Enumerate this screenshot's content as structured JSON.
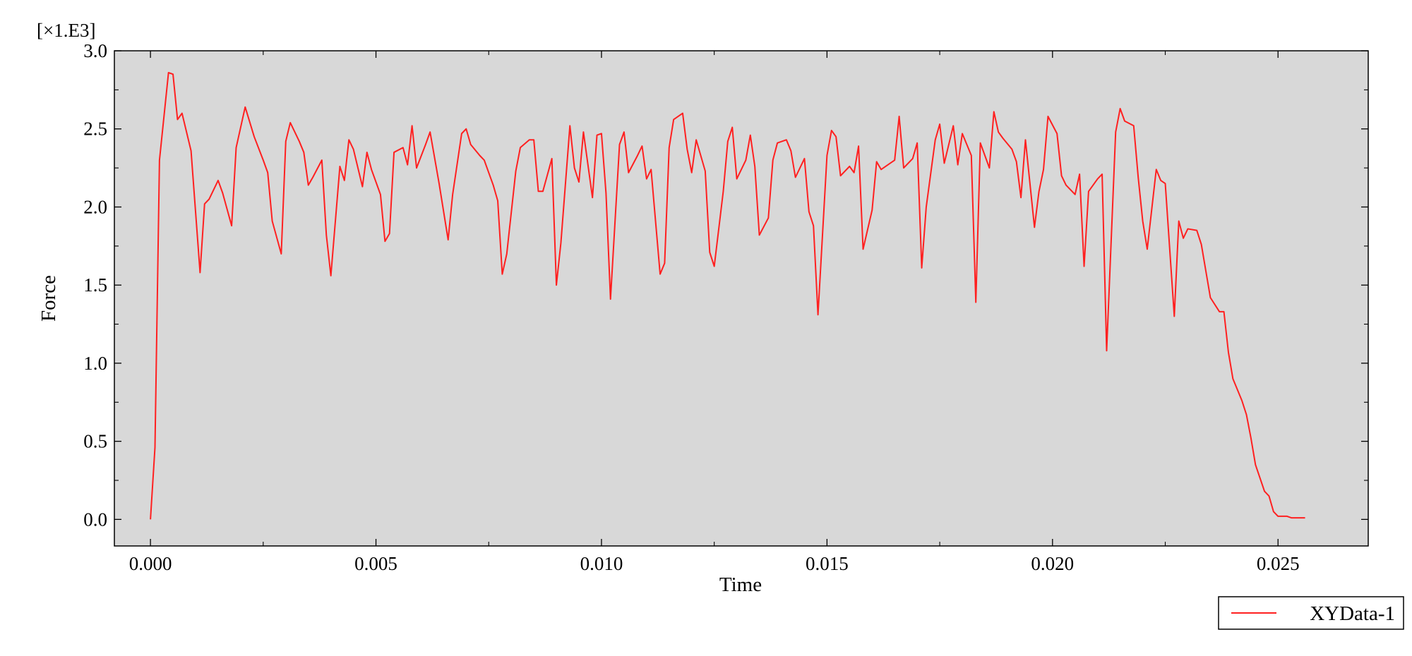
{
  "chart_data": {
    "type": "line",
    "xlabel": "Time",
    "ylabel": "Force",
    "y_scale_label": "[×1.E3]",
    "xlim": [
      -0.0008,
      0.027
    ],
    "ylim": [
      -0.17,
      3.0
    ],
    "x_ticks": [
      0.0,
      0.005,
      0.01,
      0.015,
      0.02,
      0.025
    ],
    "x_tick_labels": [
      "0.000",
      "0.005",
      "0.010",
      "0.015",
      "0.020",
      "0.025"
    ],
    "y_ticks": [
      0.0,
      0.5,
      1.0,
      1.5,
      2.0,
      2.5,
      3.0
    ],
    "y_tick_labels": [
      "0.0",
      "0.5",
      "1.0",
      "1.5",
      "2.0",
      "2.5",
      "3.0"
    ],
    "grid": false,
    "legend_position": "bottom-right",
    "background_color": "#d8d8d8",
    "series": [
      {
        "name": "XYData-1",
        "color": "#ff2020",
        "points": [
          [
            0.0,
            0.0
          ],
          [
            0.0001,
            0.46
          ],
          [
            0.0002,
            2.3
          ],
          [
            0.0004,
            2.86
          ],
          [
            0.0005,
            2.85
          ],
          [
            0.0006,
            2.56
          ],
          [
            0.0007,
            2.6
          ],
          [
            0.0009,
            2.36
          ],
          [
            0.0011,
            1.58
          ],
          [
            0.0012,
            2.02
          ],
          [
            0.0013,
            2.05
          ],
          [
            0.0015,
            2.17
          ],
          [
            0.0016,
            2.09
          ],
          [
            0.0018,
            1.88
          ],
          [
            0.0019,
            2.38
          ],
          [
            0.0021,
            2.64
          ],
          [
            0.0023,
            2.45
          ],
          [
            0.0025,
            2.3
          ],
          [
            0.0026,
            2.22
          ],
          [
            0.0027,
            1.91
          ],
          [
            0.0029,
            1.7
          ],
          [
            0.003,
            2.42
          ],
          [
            0.0031,
            2.54
          ],
          [
            0.0033,
            2.42
          ],
          [
            0.0034,
            2.35
          ],
          [
            0.0035,
            2.14
          ],
          [
            0.0036,
            2.19
          ],
          [
            0.0038,
            2.3
          ],
          [
            0.0039,
            1.82
          ],
          [
            0.004,
            1.56
          ],
          [
            0.0042,
            2.26
          ],
          [
            0.0043,
            2.17
          ],
          [
            0.0044,
            2.43
          ],
          [
            0.0045,
            2.37
          ],
          [
            0.0047,
            2.13
          ],
          [
            0.0048,
            2.35
          ],
          [
            0.0049,
            2.24
          ],
          [
            0.0051,
            2.08
          ],
          [
            0.0052,
            1.78
          ],
          [
            0.0053,
            1.83
          ],
          [
            0.0054,
            2.35
          ],
          [
            0.0056,
            2.38
          ],
          [
            0.0057,
            2.27
          ],
          [
            0.0058,
            2.52
          ],
          [
            0.0059,
            2.25
          ],
          [
            0.0061,
            2.4
          ],
          [
            0.0062,
            2.48
          ],
          [
            0.0064,
            2.15
          ],
          [
            0.0066,
            1.79
          ],
          [
            0.0067,
            2.08
          ],
          [
            0.0069,
            2.47
          ],
          [
            0.007,
            2.5
          ],
          [
            0.0071,
            2.4
          ],
          [
            0.0073,
            2.33
          ],
          [
            0.0074,
            2.3
          ],
          [
            0.0076,
            2.14
          ],
          [
            0.0077,
            2.04
          ],
          [
            0.0078,
            1.57
          ],
          [
            0.0079,
            1.7
          ],
          [
            0.0081,
            2.23
          ],
          [
            0.0082,
            2.38
          ],
          [
            0.0084,
            2.43
          ],
          [
            0.0085,
            2.43
          ],
          [
            0.0086,
            2.1
          ],
          [
            0.0087,
            2.1
          ],
          [
            0.0089,
            2.31
          ],
          [
            0.009,
            1.5
          ],
          [
            0.0091,
            1.77
          ],
          [
            0.0093,
            2.52
          ],
          [
            0.0094,
            2.25
          ],
          [
            0.0095,
            2.16
          ],
          [
            0.0096,
            2.48
          ],
          [
            0.0098,
            2.06
          ],
          [
            0.0099,
            2.46
          ],
          [
            0.01,
            2.47
          ],
          [
            0.0101,
            2.09
          ],
          [
            0.0102,
            1.41
          ],
          [
            0.0104,
            2.4
          ],
          [
            0.0105,
            2.48
          ],
          [
            0.0106,
            2.22
          ],
          [
            0.0108,
            2.33
          ],
          [
            0.0109,
            2.39
          ],
          [
            0.011,
            2.18
          ],
          [
            0.0111,
            2.24
          ],
          [
            0.0113,
            1.57
          ],
          [
            0.0114,
            1.64
          ],
          [
            0.0115,
            2.38
          ],
          [
            0.0116,
            2.56
          ],
          [
            0.0118,
            2.6
          ],
          [
            0.0119,
            2.37
          ],
          [
            0.012,
            2.22
          ],
          [
            0.0121,
            2.43
          ],
          [
            0.0123,
            2.23
          ],
          [
            0.0124,
            1.71
          ],
          [
            0.0125,
            1.62
          ],
          [
            0.0127,
            2.1
          ],
          [
            0.0128,
            2.42
          ],
          [
            0.0129,
            2.51
          ],
          [
            0.013,
            2.18
          ],
          [
            0.0132,
            2.3
          ],
          [
            0.0133,
            2.46
          ],
          [
            0.0134,
            2.26
          ],
          [
            0.0135,
            1.82
          ],
          [
            0.0137,
            1.93
          ],
          [
            0.0138,
            2.3
          ],
          [
            0.0139,
            2.41
          ],
          [
            0.0141,
            2.43
          ],
          [
            0.0142,
            2.36
          ],
          [
            0.0143,
            2.19
          ],
          [
            0.0145,
            2.31
          ],
          [
            0.0146,
            1.97
          ],
          [
            0.0147,
            1.88
          ],
          [
            0.0148,
            1.31
          ],
          [
            0.015,
            2.33
          ],
          [
            0.0151,
            2.49
          ],
          [
            0.0152,
            2.45
          ],
          [
            0.0153,
            2.2
          ],
          [
            0.0155,
            2.26
          ],
          [
            0.0156,
            2.22
          ],
          [
            0.0157,
            2.39
          ],
          [
            0.0158,
            1.73
          ],
          [
            0.016,
            1.98
          ],
          [
            0.0161,
            2.29
          ],
          [
            0.0162,
            2.24
          ],
          [
            0.0164,
            2.28
          ],
          [
            0.0165,
            2.3
          ],
          [
            0.0166,
            2.58
          ],
          [
            0.0167,
            2.25
          ],
          [
            0.0169,
            2.31
          ],
          [
            0.017,
            2.41
          ],
          [
            0.0171,
            1.61
          ],
          [
            0.0172,
            2.0
          ],
          [
            0.0174,
            2.43
          ],
          [
            0.0175,
            2.53
          ],
          [
            0.0176,
            2.28
          ],
          [
            0.0178,
            2.52
          ],
          [
            0.0179,
            2.27
          ],
          [
            0.018,
            2.47
          ],
          [
            0.0182,
            2.33
          ],
          [
            0.0183,
            1.39
          ],
          [
            0.0184,
            2.41
          ],
          [
            0.0186,
            2.25
          ],
          [
            0.0187,
            2.61
          ],
          [
            0.0188,
            2.48
          ],
          [
            0.0189,
            2.44
          ],
          [
            0.0191,
            2.37
          ],
          [
            0.0192,
            2.29
          ],
          [
            0.0193,
            2.06
          ],
          [
            0.0194,
            2.43
          ],
          [
            0.0196,
            1.87
          ],
          [
            0.0197,
            2.1
          ],
          [
            0.0198,
            2.24
          ],
          [
            0.0199,
            2.58
          ],
          [
            0.0201,
            2.47
          ],
          [
            0.0202,
            2.2
          ],
          [
            0.0203,
            2.14
          ],
          [
            0.0205,
            2.08
          ],
          [
            0.0206,
            2.21
          ],
          [
            0.0207,
            1.62
          ],
          [
            0.0208,
            2.1
          ],
          [
            0.021,
            2.18
          ],
          [
            0.0211,
            2.21
          ],
          [
            0.0212,
            1.08
          ],
          [
            0.0214,
            2.48
          ],
          [
            0.0215,
            2.63
          ],
          [
            0.0216,
            2.55
          ],
          [
            0.0218,
            2.52
          ],
          [
            0.0219,
            2.19
          ],
          [
            0.022,
            1.91
          ],
          [
            0.0221,
            1.73
          ],
          [
            0.0223,
            2.24
          ],
          [
            0.0224,
            2.17
          ],
          [
            0.0225,
            2.15
          ],
          [
            0.0227,
            1.3
          ],
          [
            0.0228,
            1.91
          ],
          [
            0.0229,
            1.8
          ],
          [
            0.023,
            1.86
          ],
          [
            0.0232,
            1.85
          ],
          [
            0.0233,
            1.76
          ],
          [
            0.0234,
            1.59
          ],
          [
            0.0235,
            1.42
          ],
          [
            0.0237,
            1.33
          ],
          [
            0.0238,
            1.33
          ],
          [
            0.0239,
            1.07
          ],
          [
            0.024,
            0.9
          ],
          [
            0.0242,
            0.76
          ],
          [
            0.0243,
            0.67
          ],
          [
            0.0244,
            0.52
          ],
          [
            0.0245,
            0.35
          ],
          [
            0.0247,
            0.18
          ],
          [
            0.0248,
            0.15
          ],
          [
            0.0249,
            0.05
          ],
          [
            0.025,
            0.02
          ],
          [
            0.0252,
            0.02
          ],
          [
            0.0253,
            0.01
          ],
          [
            0.0255,
            0.01
          ],
          [
            0.0256,
            0.01
          ]
        ]
      }
    ]
  }
}
